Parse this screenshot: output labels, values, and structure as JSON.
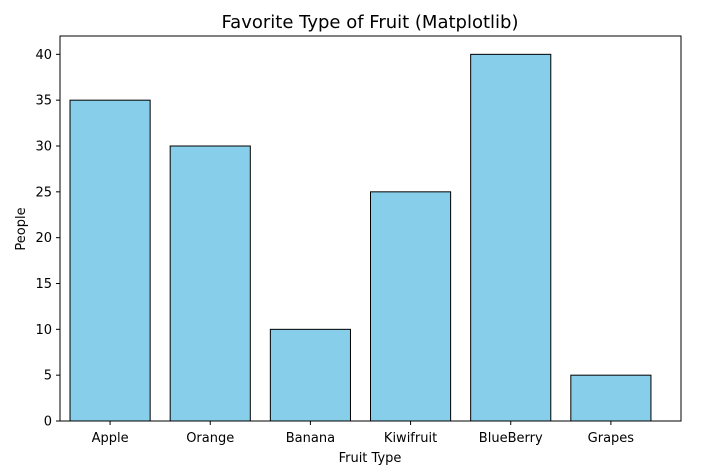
{
  "chart_data": {
    "type": "bar",
    "title": "Favorite Type of Fruit (Matplotlib)",
    "xlabel": "Fruit Type",
    "ylabel": "People",
    "categories": [
      "Apple",
      "Orange",
      "Banana",
      "Kiwifruit",
      "BlueBerry",
      "Grapes"
    ],
    "values": [
      35,
      30,
      10,
      25,
      40,
      5
    ],
    "ylim": [
      0,
      42
    ],
    "yticks": [
      0,
      5,
      10,
      15,
      20,
      25,
      30,
      35,
      40
    ],
    "bar_color": "#87CEEB",
    "edge_color": "#000000",
    "grid": false,
    "legend": "none"
  }
}
